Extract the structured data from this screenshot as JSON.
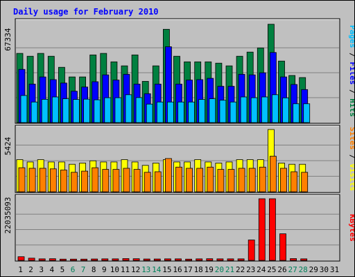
{
  "chart_data": {
    "type": "bar",
    "title": "Daily usage for February 2010",
    "days": [
      "1",
      "2",
      "3",
      "4",
      "5",
      "6",
      "7",
      "8",
      "9",
      "10",
      "11",
      "12",
      "13",
      "14",
      "15",
      "16",
      "17",
      "18",
      "19",
      "20",
      "21",
      "22",
      "23",
      "24",
      "25",
      "26",
      "27",
      "28",
      "29",
      "30",
      "31"
    ],
    "weekend_days": [
      "6",
      "7",
      "13",
      "14",
      "20",
      "21",
      "27",
      "28"
    ],
    "panels": [
      {
        "id": "pages-files-hits",
        "ymax_label": "67334",
        "ymax": 67334,
        "right_labels": [
          {
            "text": "Pages",
            "color": "#00c0ff"
          },
          {
            "text": "Files",
            "color": "#0000ff"
          },
          {
            "text": "Hits",
            "color": "#008040"
          }
        ],
        "series": [
          {
            "name": "Hits",
            "color": "#008040",
            "values": [
              46700,
              44800,
              46700,
              44800,
              37300,
              30800,
              30800,
              45700,
              46700,
              41000,
              38300,
              45700,
              27800,
              38300,
              63000,
              44800,
              41000,
              41000,
              41000,
              40100,
              38300,
              44800,
              47600,
              50400,
              66400,
              41500,
              31800,
              30400,
              0,
              0,
              0
            ]
          },
          {
            "name": "Files",
            "color": "#0000ff",
            "values": [
              35900,
              26000,
              30800,
              29000,
              26700,
              21200,
              24000,
              27600,
              32200,
              28700,
              32600,
              26000,
              19500,
              26000,
              51200,
              26000,
              28700,
              29000,
              29900,
              24500,
              24500,
              32600,
              32200,
              33600,
              47300,
              30800,
              25700,
              22300,
              0,
              0,
              0
            ]
          },
          {
            "name": "Pages",
            "color": "#00c0ff",
            "values": [
              18300,
              13900,
              15700,
              17300,
              16100,
              15600,
              15800,
              15400,
              16800,
              16800,
              18800,
              16900,
              12500,
              13900,
              13900,
              13900,
              13900,
              15600,
              16100,
              15100,
              13900,
              17300,
              16800,
              17300,
              18800,
              16700,
              12700,
              12700,
              0,
              0,
              0
            ]
          }
        ]
      },
      {
        "id": "visits-sites",
        "ymax_label": "5424",
        "ymax": 5424,
        "right_labels": [
          {
            "text": "Sites",
            "color": "#ff8000"
          },
          {
            "text": "Visits",
            "color": "#ffff00"
          }
        ],
        "series": [
          {
            "name": "Visits",
            "color": "#ffff00",
            "values": [
              2800,
              2600,
              2800,
              2600,
              2600,
              2400,
              2500,
              2700,
              2600,
              2600,
              2800,
              2600,
              2300,
              2500,
              2800,
              2600,
              2600,
              2800,
              2600,
              2500,
              2600,
              2800,
              2800,
              2800,
              5424,
              2500,
              2400,
              2400,
              0,
              0,
              0
            ]
          },
          {
            "name": "Sites",
            "color": "#ff8000",
            "values": [
              2100,
              2050,
              2050,
              2000,
              1900,
              1700,
              1800,
              2100,
              1950,
              1950,
              2050,
              1950,
              1700,
              1750,
              2900,
              2150,
              2050,
              2050,
              2150,
              1950,
              1950,
              2050,
              2050,
              2150,
              3100,
              2050,
              1750,
              1700,
              0,
              0,
              0
            ]
          }
        ]
      },
      {
        "id": "kbytes",
        "ymax_label": "22035093",
        "ymax": 22035093,
        "right_labels": [
          {
            "text": "KBytes",
            "color": "#ff0000"
          }
        ],
        "series": [
          {
            "name": "KBytes",
            "color": "#ff0000",
            "values": [
              1300000,
              800000,
              550000,
              600000,
              450000,
              450000,
              450000,
              500000,
              550000,
              550000,
              650000,
              600000,
              500000,
              500000,
              550000,
              550000,
              450000,
              550000,
              600000,
              550000,
              550000,
              550000,
              7300000,
              22035093,
              22035093,
              9500000,
              650000,
              550000,
              0,
              0,
              0
            ]
          }
        ]
      }
    ]
  }
}
